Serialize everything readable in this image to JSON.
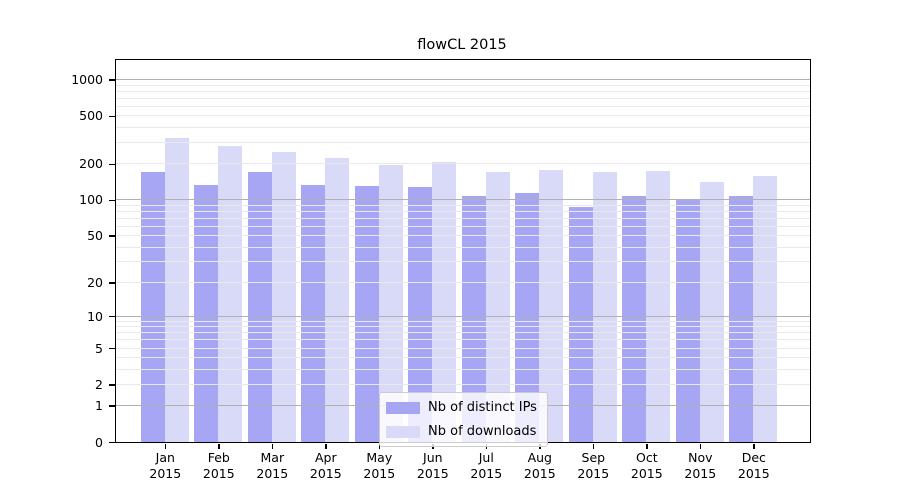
{
  "chart_data": {
    "type": "bar",
    "title": "flowCL 2015",
    "categories": [
      "Jan",
      "Feb",
      "Mar",
      "Apr",
      "May",
      "Jun",
      "Jul",
      "Aug",
      "Sep",
      "Oct",
      "Nov",
      "Dec"
    ],
    "category_year": "2015",
    "series": [
      {
        "name": "Nb of distinct IPs",
        "color": "#a6a6f4",
        "values": [
          172,
          133,
          172,
          133,
          130,
          128,
          107,
          115,
          87,
          107,
          100,
          107
        ]
      },
      {
        "name": "Nb of downloads",
        "color": "#d9d9f8",
        "values": [
          330,
          283,
          250,
          225,
          197,
          207,
          172,
          178,
          170,
          173,
          142,
          158
        ]
      }
    ],
    "yscale": "log1p",
    "y_ticks": [
      0,
      1,
      2,
      5,
      10,
      20,
      50,
      100,
      200,
      500,
      1000
    ],
    "ylim": [
      0,
      1450
    ],
    "xlabel": "",
    "ylabel": "",
    "grid": true,
    "legend_position": "lower center",
    "colors": {
      "major_grid": "#b0b0b0",
      "minor_grid": "#e9e9e9",
      "axis": "#000000",
      "background": "#ffffff"
    }
  }
}
